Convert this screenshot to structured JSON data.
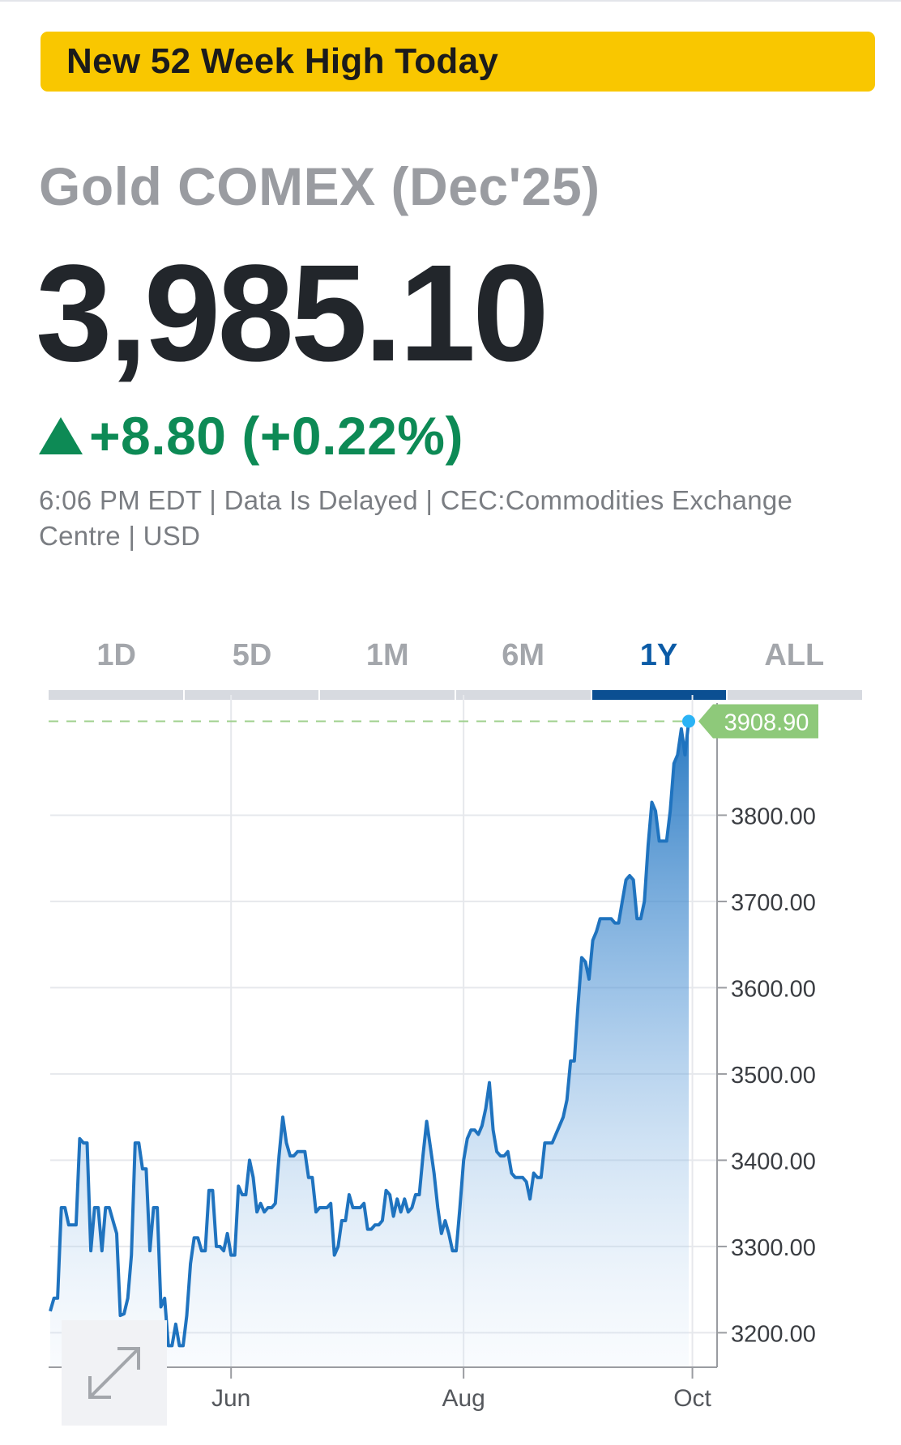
{
  "banner": {
    "text": "New 52 Week High Today"
  },
  "quote": {
    "name": "Gold COMEX (Dec'25)",
    "price": "3,985.10",
    "change": "+8.80 (+0.22%)",
    "meta": "6:06 PM EDT | Data Is Delayed | CEC:Commodities Exchange Centre | USD"
  },
  "tabs": [
    {
      "label": "1D"
    },
    {
      "label": "5D"
    },
    {
      "label": "1M"
    },
    {
      "label": "6M"
    },
    {
      "label": "1Y",
      "active": true
    },
    {
      "label": "ALL"
    }
  ],
  "colors": {
    "banner": "#f9c700",
    "up": "#0d8a55",
    "line": "#1f73bf",
    "last_label": "#8ec97a",
    "active_tab": "#0b4f92"
  },
  "icons": {
    "expand": "expand-arrows-icon"
  },
  "chart_data": {
    "type": "area",
    "ylim": [
      3160,
      3930
    ],
    "y_ticks": [
      {
        "value": 3200,
        "label": "3200.00"
      },
      {
        "value": 3300,
        "label": "3300.00"
      },
      {
        "value": 3400,
        "label": "3400.00"
      },
      {
        "value": 3500,
        "label": "3500.00"
      },
      {
        "value": 3600,
        "label": "3600.00"
      },
      {
        "value": 3700,
        "label": "3700.00"
      },
      {
        "value": 3800,
        "label": "3800.00"
      }
    ],
    "x_ticks": [
      {
        "label": "Jun",
        "index": 49
      },
      {
        "label": "Aug",
        "index": 112
      },
      {
        "label": "Oct",
        "index": 174
      }
    ],
    "last_value_label": "3908.90",
    "last_value": 3908.9,
    "grid": true,
    "values": [
      3225,
      3240,
      3240,
      3345,
      3345,
      3325,
      3325,
      3325,
      3425,
      3420,
      3420,
      3295,
      3345,
      3345,
      3295,
      3345,
      3345,
      3330,
      3315,
      3220,
      3222,
      3240,
      3290,
      3420,
      3420,
      3390,
      3390,
      3295,
      3345,
      3345,
      3230,
      3240,
      3185,
      3185,
      3210,
      3185,
      3185,
      3220,
      3280,
      3310,
      3310,
      3295,
      3295,
      3365,
      3365,
      3300,
      3300,
      3295,
      3315,
      3290,
      3290,
      3370,
      3360,
      3360,
      3400,
      3380,
      3340,
      3350,
      3340,
      3345,
      3345,
      3350,
      3405,
      3450,
      3420,
      3405,
      3405,
      3410,
      3410,
      3410,
      3380,
      3380,
      3340,
      3345,
      3345,
      3345,
      3350,
      3290,
      3300,
      3330,
      3330,
      3360,
      3345,
      3345,
      3345,
      3350,
      3320,
      3320,
      3325,
      3325,
      3330,
      3365,
      3360,
      3335,
      3355,
      3340,
      3355,
      3340,
      3345,
      3360,
      3360,
      3405,
      3445,
      3415,
      3385,
      3345,
      3315,
      3330,
      3315,
      3295,
      3295,
      3345,
      3400,
      3425,
      3435,
      3435,
      3430,
      3440,
      3460,
      3490,
      3435,
      3410,
      3405,
      3405,
      3410,
      3385,
      3380,
      3380,
      3380,
      3375,
      3355,
      3385,
      3380,
      3380,
      3420,
      3420,
      3420,
      3430,
      3440,
      3450,
      3470,
      3515,
      3515,
      3580,
      3635,
      3630,
      3610,
      3655,
      3665,
      3680,
      3680,
      3680,
      3680,
      3675,
      3675,
      3700,
      3725,
      3730,
      3725,
      3680,
      3680,
      3700,
      3765,
      3815,
      3805,
      3770,
      3770,
      3770,
      3805,
      3860,
      3870,
      3900,
      3870,
      3908.9
    ]
  }
}
